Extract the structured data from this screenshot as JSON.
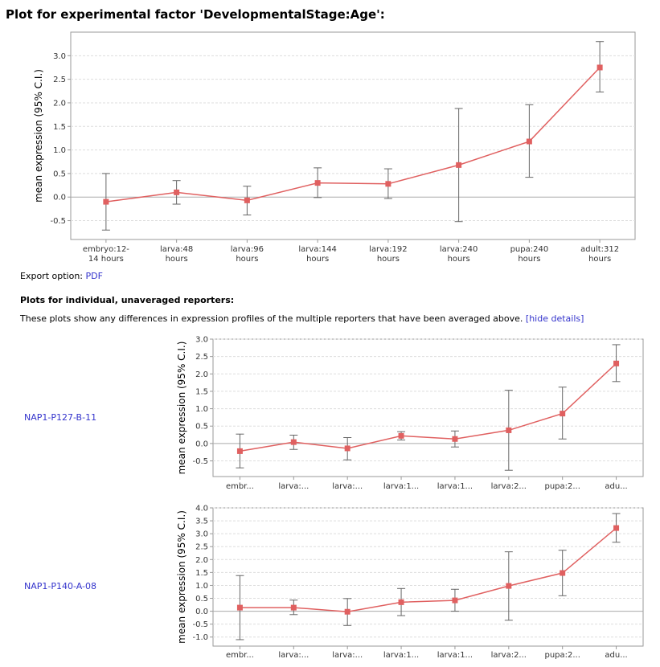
{
  "page": {
    "title": "Plot for experimental factor 'DevelopmentalStage:Age':",
    "export_label": "Export option:",
    "export_link": "PDF",
    "individual_heading": "Plots for individual, unaveraged reporters:",
    "individual_desc": "These plots show any differences in expression profiles of the multiple reporters that have been averaged above.",
    "hide_details": "[hide details]"
  },
  "colors": {
    "line": "#e06060",
    "marker": "#e06060",
    "error_bar": "#666666",
    "grid": "#dddddd",
    "zero_line": "#aaaaaa",
    "link": "#3333cc"
  },
  "chart_data": [
    {
      "id": "main",
      "type": "line",
      "ylabel": "mean expression (95% C.I.)",
      "xlabel": "",
      "categories": [
        [
          "embryo:12-",
          "14 hours"
        ],
        [
          "larva:48",
          "hours"
        ],
        [
          "larva:96",
          "hours"
        ],
        [
          "larva:144",
          "hours"
        ],
        [
          "larva:192",
          "hours"
        ],
        [
          "larva:240",
          "hours"
        ],
        [
          "pupa:240",
          "hours"
        ],
        [
          "adult:312",
          "hours"
        ]
      ],
      "values": [
        -0.1,
        0.1,
        -0.07,
        0.3,
        0.28,
        0.68,
        1.18,
        2.75
      ],
      "ci_low": [
        -0.7,
        -0.15,
        -0.38,
        -0.01,
        -0.03,
        -0.52,
        0.42,
        2.23
      ],
      "ci_high": [
        0.5,
        0.35,
        0.23,
        0.62,
        0.6,
        1.88,
        1.96,
        3.3
      ],
      "yticks": [
        "-0.5",
        "0.0",
        "0.5",
        "1.0",
        "1.5",
        "2.0",
        "2.5",
        "3.0"
      ],
      "ylim": [
        -0.9,
        3.5
      ],
      "grid": true,
      "legend": "none"
    },
    {
      "id": "rep1",
      "type": "line",
      "reporter": "NAP1-P127-B-11",
      "ylabel": "mean expression (95% C.I.)",
      "xlabel": "",
      "categories": [
        [
          "embr..."
        ],
        [
          "larva:..."
        ],
        [
          "larva:..."
        ],
        [
          "larva:1..."
        ],
        [
          "larva:1..."
        ],
        [
          "larva:2..."
        ],
        [
          "pupa:2..."
        ],
        [
          "adu..."
        ]
      ],
      "values": [
        -0.22,
        0.04,
        -0.14,
        0.22,
        0.13,
        0.38,
        0.86,
        2.3
      ],
      "ci_low": [
        -0.7,
        -0.17,
        -0.47,
        0.1,
        -0.1,
        -0.77,
        0.13,
        1.78
      ],
      "ci_high": [
        0.27,
        0.24,
        0.17,
        0.34,
        0.36,
        1.53,
        1.62,
        2.84
      ],
      "yticks": [
        "-0.5",
        "0.0",
        "0.5",
        "1.0",
        "1.5",
        "2.0",
        "2.5",
        "3.0"
      ],
      "ylim": [
        -0.95,
        3.0
      ],
      "grid": true,
      "legend": "none"
    },
    {
      "id": "rep2",
      "type": "line",
      "reporter": "NAP1-P140-A-08",
      "ylabel": "mean expression (95% C.I.)",
      "xlabel": "",
      "categories": [
        [
          "embr..."
        ],
        [
          "larva:..."
        ],
        [
          "larva:..."
        ],
        [
          "larva:1..."
        ],
        [
          "larva:1..."
        ],
        [
          "larva:2..."
        ],
        [
          "pupa:2..."
        ],
        [
          "adu..."
        ]
      ],
      "values": [
        0.14,
        0.14,
        -0.02,
        0.35,
        0.42,
        0.98,
        1.48,
        3.22
      ],
      "ci_low": [
        -1.1,
        -0.13,
        -0.55,
        -0.17,
        0.0,
        -0.35,
        0.6,
        2.67
      ],
      "ci_high": [
        1.38,
        0.43,
        0.49,
        0.88,
        0.85,
        2.3,
        2.36,
        3.78
      ],
      "yticks": [
        "-1.0",
        "-0.5",
        "0.0",
        "0.5",
        "1.0",
        "1.5",
        "2.0",
        "2.5",
        "3.0",
        "3.5",
        "4.0"
      ],
      "ylim": [
        -1.35,
        4.0
      ],
      "grid": true,
      "legend": "none"
    }
  ]
}
